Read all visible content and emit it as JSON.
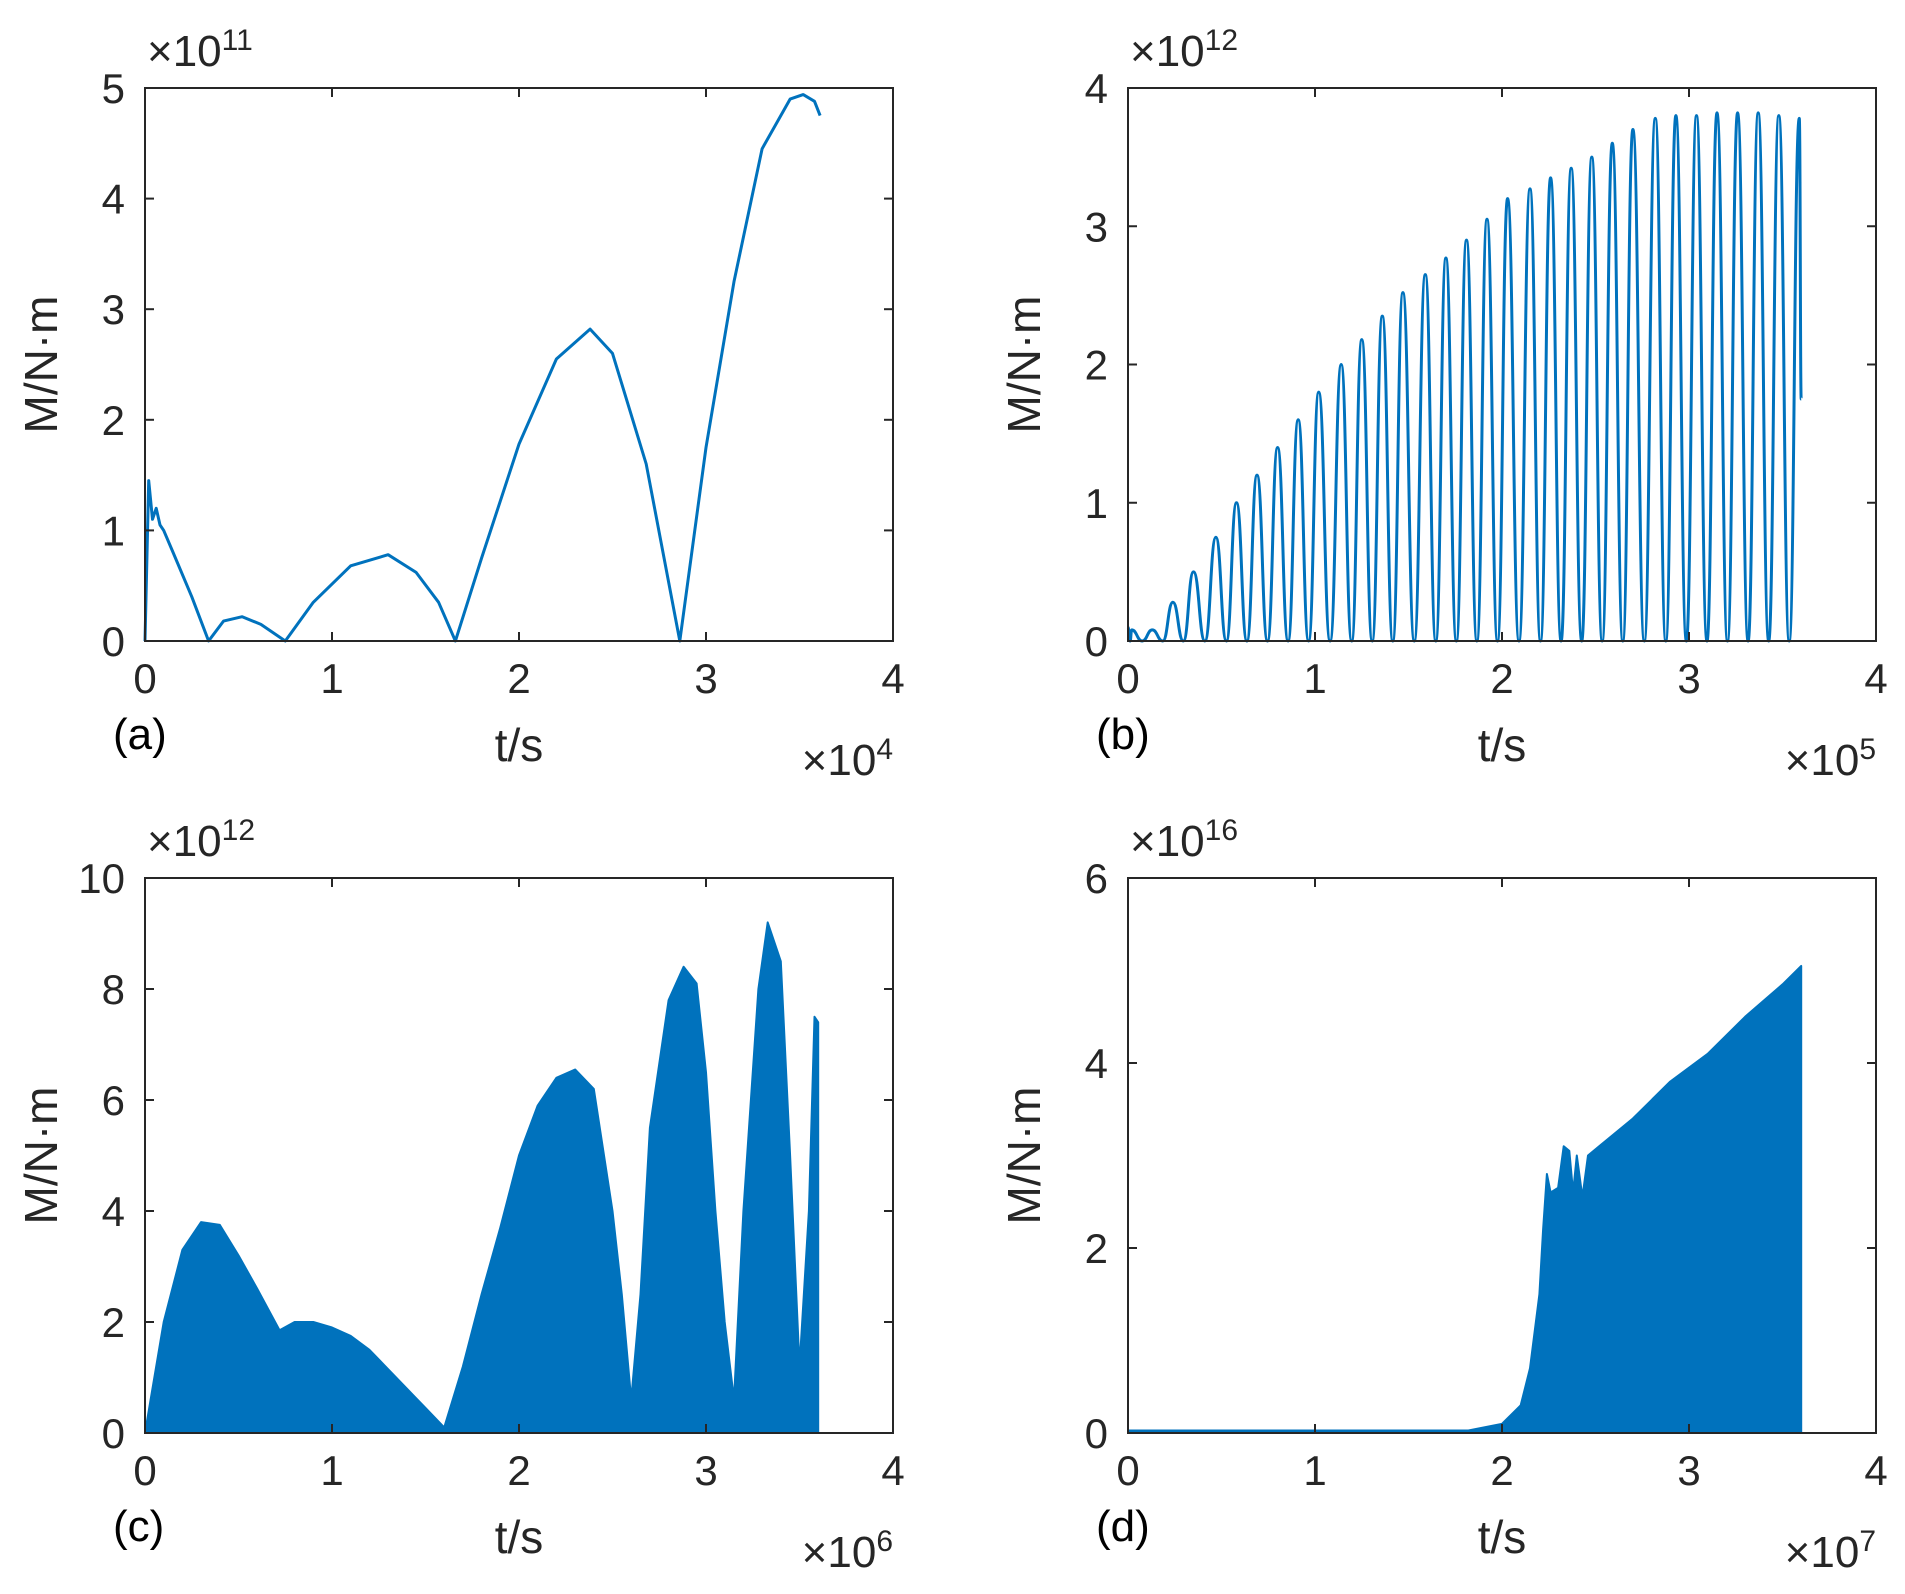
{
  "colors": {
    "series": "#0072BD",
    "axes": "#262626",
    "background": "#ffffff"
  },
  "chart_data": [
    {
      "type": "line",
      "panel_label": "(a)",
      "xlabel": "t/s",
      "ylabel": "M/N·m",
      "x_multiplier": "×10",
      "x_exponent": "4",
      "y_multiplier": "×10",
      "y_exponent": "11",
      "xlim": [
        0,
        4
      ],
      "ylim": [
        0,
        5
      ],
      "xticks": [
        "0",
        "1",
        "2",
        "3",
        "4"
      ],
      "yticks": [
        "0",
        "1",
        "2",
        "3",
        "4",
        "5"
      ],
      "style": "line",
      "series": [
        {
          "name": "M",
          "x": [
            0,
            0.02,
            0.04,
            0.06,
            0.08,
            0.1,
            0.15,
            0.25,
            0.34,
            0.42,
            0.52,
            0.62,
            0.75,
            0.9,
            1.1,
            1.3,
            1.45,
            1.57,
            1.66,
            1.8,
            2.0,
            2.2,
            2.38,
            2.5,
            2.68,
            2.86,
            3.0,
            3.15,
            3.3,
            3.45,
            3.52,
            3.58,
            3.61
          ],
          "y": [
            0,
            1.45,
            1.1,
            1.2,
            1.05,
            1.0,
            0.8,
            0.4,
            0,
            0.18,
            0.22,
            0.15,
            0,
            0.35,
            0.68,
            0.78,
            0.62,
            0.35,
            0,
            0.75,
            1.78,
            2.55,
            2.82,
            2.6,
            1.6,
            0,
            1.75,
            3.25,
            4.45,
            4.9,
            4.94,
            4.88,
            4.75
          ]
        }
      ]
    },
    {
      "type": "line",
      "panel_label": "(b)",
      "xlabel": "t/s",
      "ylabel": "M/N·m",
      "x_multiplier": "×10",
      "x_exponent": "5",
      "y_multiplier": "×10",
      "y_exponent": "12",
      "xlim": [
        0,
        4
      ],
      "ylim": [
        0,
        4
      ],
      "xticks": [
        "0",
        "1",
        "2",
        "3",
        "4"
      ],
      "yticks": [
        "0",
        "1",
        "2",
        "3",
        "4"
      ],
      "style": "oscillation",
      "series": [
        {
          "name": "M",
          "cycles": [
            {
              "t": 0.02,
              "peak": 0.08
            },
            {
              "t": 0.13,
              "peak": 0.08
            },
            {
              "t": 0.24,
              "peak": 0.28
            },
            {
              "t": 0.35,
              "peak": 0.5
            },
            {
              "t": 0.47,
              "peak": 0.75
            },
            {
              "t": 0.58,
              "peak": 1.0
            },
            {
              "t": 0.69,
              "peak": 1.2
            },
            {
              "t": 0.8,
              "peak": 1.4
            },
            {
              "t": 0.91,
              "peak": 1.6
            },
            {
              "t": 1.02,
              "peak": 1.8
            },
            {
              "t": 1.14,
              "peak": 2.0
            },
            {
              "t": 1.25,
              "peak": 2.18
            },
            {
              "t": 1.36,
              "peak": 2.35
            },
            {
              "t": 1.47,
              "peak": 2.52
            },
            {
              "t": 1.59,
              "peak": 2.65
            },
            {
              "t": 1.7,
              "peak": 2.77
            },
            {
              "t": 1.81,
              "peak": 2.9
            },
            {
              "t": 1.92,
              "peak": 3.05
            },
            {
              "t": 2.03,
              "peak": 3.2
            },
            {
              "t": 2.15,
              "peak": 3.27
            },
            {
              "t": 2.26,
              "peak": 3.35
            },
            {
              "t": 2.37,
              "peak": 3.42
            },
            {
              "t": 2.48,
              "peak": 3.5
            },
            {
              "t": 2.59,
              "peak": 3.6
            },
            {
              "t": 2.7,
              "peak": 3.7
            },
            {
              "t": 2.82,
              "peak": 3.78
            },
            {
              "t": 2.93,
              "peak": 3.8
            },
            {
              "t": 3.04,
              "peak": 3.8
            },
            {
              "t": 3.15,
              "peak": 3.82
            },
            {
              "t": 3.26,
              "peak": 3.82
            },
            {
              "t": 3.37,
              "peak": 3.82
            },
            {
              "t": 3.48,
              "peak": 3.8
            },
            {
              "t": 3.59,
              "peak": 3.78
            }
          ],
          "end_value": 1.75
        }
      ]
    },
    {
      "type": "area",
      "panel_label": "(c)",
      "xlabel": "t/s",
      "ylabel": "M/N·m",
      "x_multiplier": "×10",
      "x_exponent": "6",
      "y_multiplier": "×10",
      "y_exponent": "12",
      "xlim": [
        0,
        4
      ],
      "ylim": [
        0,
        10
      ],
      "xticks": [
        "0",
        "1",
        "2",
        "3",
        "4"
      ],
      "yticks": [
        "0",
        "2",
        "4",
        "6",
        "8",
        "10"
      ],
      "style": "envelope",
      "series": [
        {
          "name": "M envelope",
          "x": [
            0,
            0.1,
            0.2,
            0.3,
            0.4,
            0.5,
            0.6,
            0.72,
            0.8,
            0.9,
            1.0,
            1.1,
            1.2,
            1.3,
            1.4,
            1.5,
            1.6,
            1.7,
            1.8,
            1.9,
            2.0,
            2.1,
            2.2,
            2.3,
            2.4,
            2.5,
            2.55,
            2.6,
            2.65,
            2.7,
            2.8,
            2.88,
            2.95,
            3.0,
            3.05,
            3.1,
            3.15,
            3.2,
            3.28,
            3.33,
            3.4,
            3.45,
            3.5,
            3.55,
            3.58,
            3.6
          ],
          "y": [
            0,
            2.0,
            3.3,
            3.8,
            3.75,
            3.2,
            2.6,
            1.85,
            2.0,
            2.0,
            1.9,
            1.75,
            1.5,
            1.15,
            0.8,
            0.45,
            0.1,
            1.2,
            2.5,
            3.7,
            5.0,
            5.9,
            6.4,
            6.55,
            6.2,
            4.0,
            2.5,
            0.6,
            2.5,
            5.5,
            7.8,
            8.4,
            8.1,
            6.5,
            4.0,
            2.0,
            0.6,
            4.0,
            8.0,
            9.2,
            8.5,
            5.0,
            1.2,
            4.0,
            7.5,
            7.4
          ]
        }
      ]
    },
    {
      "type": "area",
      "panel_label": "(d)",
      "xlabel": "t/s",
      "ylabel": "M/N·m",
      "x_multiplier": "×10",
      "x_exponent": "7",
      "y_multiplier": "×10",
      "y_exponent": "16",
      "xlim": [
        0,
        4
      ],
      "ylim": [
        0,
        6
      ],
      "xticks": [
        "0",
        "1",
        "2",
        "3",
        "4"
      ],
      "yticks": [
        "0",
        "2",
        "4",
        "6"
      ],
      "style": "envelope",
      "series": [
        {
          "name": "M envelope",
          "x": [
            0,
            1.8,
            2.0,
            2.1,
            2.15,
            2.2,
            2.22,
            2.24,
            2.26,
            2.3,
            2.33,
            2.36,
            2.38,
            2.4,
            2.43,
            2.46,
            2.55,
            2.7,
            2.9,
            3.1,
            3.3,
            3.5,
            3.6
          ],
          "y": [
            0,
            0.02,
            0.1,
            0.3,
            0.7,
            1.5,
            2.2,
            2.8,
            2.6,
            2.65,
            3.1,
            3.05,
            2.6,
            3.0,
            2.55,
            3.0,
            3.15,
            3.4,
            3.8,
            4.1,
            4.5,
            4.85,
            5.05
          ]
        }
      ]
    }
  ]
}
